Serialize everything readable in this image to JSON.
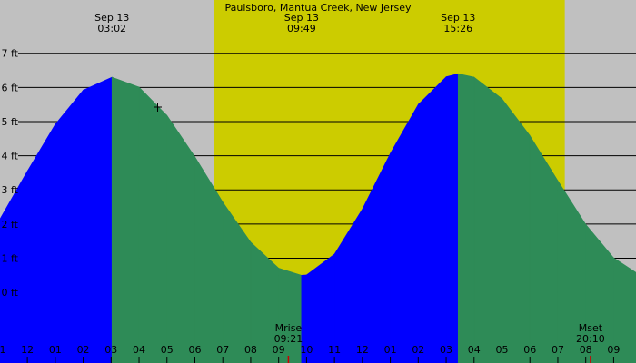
{
  "chart_data": {
    "type": "tide",
    "title": "Paulsboro, Mantua Creek, New Jersey",
    "x": [
      -0.98,
      0,
      1,
      2,
      3.03,
      4,
      5,
      6,
      7,
      8,
      9,
      9.82,
      10,
      11,
      12,
      13,
      14,
      15,
      15.43,
      16,
      17,
      18,
      19,
      20,
      21,
      21.8
    ],
    "series": [
      {
        "rise_color": "#0000ff",
        "fall_color": "#2e8b57",
        "values": [
          2.15,
          3.55,
          4.92,
          5.92,
          6.3,
          6.01,
          5.18,
          3.97,
          2.64,
          1.47,
          0.71,
          0.5,
          0.51,
          1.12,
          2.44,
          4.07,
          5.5,
          6.31,
          6.4,
          6.3,
          5.67,
          4.59,
          3.27,
          1.99,
          1.01,
          0.58
        ]
      }
    ],
    "xlim": [
      -0.98,
      21.8
    ],
    "ylim": [
      -2.07,
      8.56
    ],
    "yticks": [
      {
        "value": 0,
        "label": "0 ft"
      },
      {
        "value": 1,
        "label": "1 ft"
      },
      {
        "value": 2,
        "label": "2 ft"
      },
      {
        "value": 3,
        "label": "3 ft"
      },
      {
        "value": 4,
        "label": "4 ft"
      },
      {
        "value": 5,
        "label": "5 ft"
      },
      {
        "value": 6,
        "label": "6 ft"
      },
      {
        "value": 7,
        "label": "7 ft"
      }
    ],
    "xticks": [
      {
        "value": -1,
        "label": "1"
      },
      {
        "value": 0,
        "label": "12"
      },
      {
        "value": 1,
        "label": "01"
      },
      {
        "value": 2,
        "label": "02"
      },
      {
        "value": 3,
        "label": "03"
      },
      {
        "value": 4,
        "label": "04"
      },
      {
        "value": 5,
        "label": "05"
      },
      {
        "value": 6,
        "label": "06"
      },
      {
        "value": 7,
        "label": "07"
      },
      {
        "value": 8,
        "label": "08"
      },
      {
        "value": 9,
        "label": "09"
      },
      {
        "value": 10,
        "label": "10"
      },
      {
        "value": 11,
        "label": "11"
      },
      {
        "value": 12,
        "label": "12"
      },
      {
        "value": 13,
        "label": "01"
      },
      {
        "value": 14,
        "label": "02"
      },
      {
        "value": 15,
        "label": "03"
      },
      {
        "value": 16,
        "label": "04"
      },
      {
        "value": 17,
        "label": "05"
      },
      {
        "value": 18,
        "label": "06"
      },
      {
        "value": 19,
        "label": "07"
      },
      {
        "value": 20,
        "label": "08"
      },
      {
        "value": 21,
        "label": "09"
      }
    ],
    "daylight": [
      6.68,
      19.25
    ],
    "daylight_color": "#cccc00",
    "night_color": "#c0c0c0",
    "events": [
      {
        "date": "Sep 13",
        "time": "03:02",
        "x": 3.03
      },
      {
        "date": "Sep 13",
        "time": "09:49",
        "x": 9.82
      },
      {
        "date": "Sep 13",
        "time": "15:26",
        "x": 15.43
      }
    ],
    "moon": [
      {
        "label": "Mrise",
        "time": "09:21",
        "x": 9.35
      },
      {
        "label": "Mset",
        "time": "20:10",
        "x": 20.17
      }
    ]
  }
}
